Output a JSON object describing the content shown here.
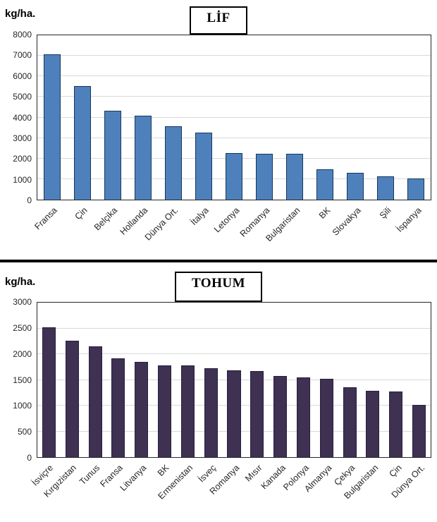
{
  "chart_data": [
    {
      "type": "bar",
      "title": "LİF",
      "unit_label": "kg/ha.",
      "categories": [
        "Fransa",
        "Çin",
        "Belçika",
        "Hollanda",
        "Dünya Ort.",
        "İtalya",
        "Letonya",
        "Romanya",
        "Bulgaristan",
        "BK",
        "Slovakya",
        "Şili",
        "İspanya"
      ],
      "values": [
        7080,
        5540,
        4330,
        4070,
        3560,
        3250,
        2260,
        2240,
        2230,
        1470,
        1300,
        1130,
        1040
      ],
      "xlabel": "",
      "ylabel": "kg/ha.",
      "ylim": [
        0,
        8000
      ],
      "ytick_step": 1000,
      "grid": true,
      "legend": "none",
      "bar_fill": "#4e81bc",
      "bar_border": "#17365d",
      "bar_width_frac": 0.56
    },
    {
      "type": "bar",
      "title": "TOHUM",
      "unit_label": "kg/ha.",
      "categories": [
        "İsviçre",
        "Kırgızistan",
        "Tunus",
        "Fransa",
        "Litvanya",
        "BK",
        "Ermenistan",
        "İsveç",
        "Romanya",
        "Mısır",
        "Kanada",
        "Polonya",
        "Almanya",
        "Çekya",
        "Bulgaristan",
        "Çin",
        "Dünya Ort."
      ],
      "values": [
        2520,
        2265,
        2150,
        1920,
        1850,
        1780,
        1775,
        1725,
        1680,
        1675,
        1570,
        1545,
        1520,
        1360,
        1290,
        1275,
        1010
      ],
      "xlabel": "",
      "ylabel": "kg/ha.",
      "ylim": [
        0,
        3000
      ],
      "ytick_step": 500,
      "grid": true,
      "legend": "none",
      "bar_fill": "#3e3152",
      "bar_border": "#282040",
      "bar_width_frac": 0.58
    }
  ]
}
